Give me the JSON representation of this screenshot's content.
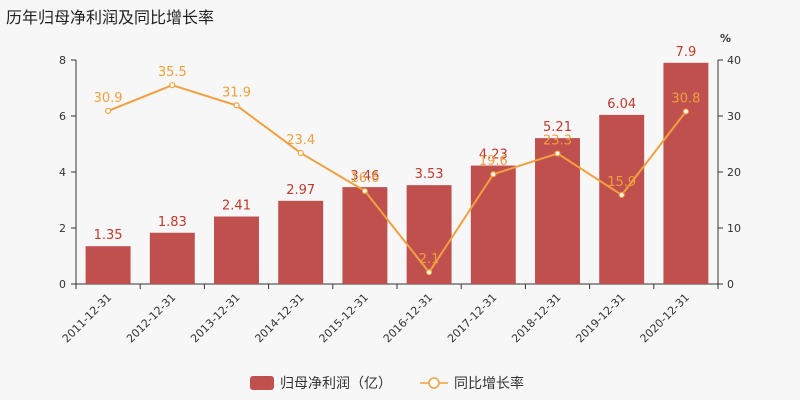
{
  "title": "历年归母净利润及同比增长率",
  "colors": {
    "bar": "#c0504d",
    "line": "#f0a040",
    "background": "#f7f7f7"
  },
  "chart_data": {
    "type": "bar",
    "categories": [
      "2011-12-31",
      "2012-12-31",
      "2013-12-31",
      "2014-12-31",
      "2015-12-31",
      "2016-12-31",
      "2017-12-31",
      "2018-12-31",
      "2019-12-31",
      "2020-12-31"
    ],
    "series": [
      {
        "name": "归母净利润（亿）",
        "type": "bar",
        "axis": "left",
        "values": [
          1.35,
          1.83,
          2.41,
          2.97,
          3.46,
          3.53,
          4.23,
          5.21,
          6.04,
          7.9
        ],
        "labels": [
          "1.35",
          "1.83",
          "2.41",
          "2.97",
          "3.46",
          "3.53",
          "4.23",
          "5.21",
          "6.04",
          "7.9"
        ]
      },
      {
        "name": "同比增长率",
        "type": "line",
        "axis": "right",
        "values": [
          30.9,
          35.5,
          31.9,
          23.4,
          16.6,
          2.1,
          19.6,
          23.3,
          15.9,
          30.8
        ],
        "labels": [
          "30.9",
          "35.5",
          "31.9",
          "23.4",
          "16.6",
          "2.1",
          "19.6",
          "23.3",
          "15.9",
          "30.8"
        ]
      }
    ],
    "left_axis": {
      "ylim": [
        0,
        8
      ],
      "ticks": [
        "0",
        "2",
        "4",
        "6",
        "8"
      ]
    },
    "right_axis": {
      "ylim": [
        0,
        40
      ],
      "ticks": [
        "0",
        "10",
        "20",
        "30",
        "40"
      ],
      "unit": "%"
    },
    "legend": "bottom"
  }
}
